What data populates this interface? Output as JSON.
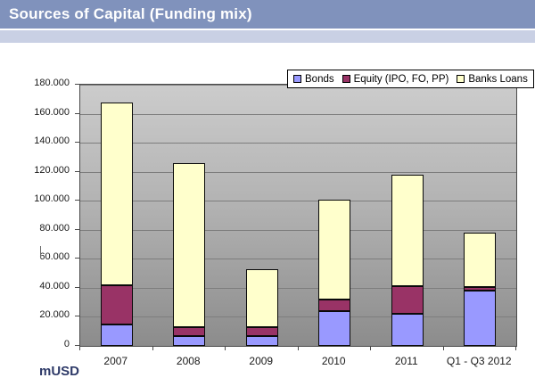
{
  "header": {
    "title": "Sources of Capital (Funding mix)"
  },
  "colors": {
    "header_bar": "#8092bc",
    "header_strip": "#c9d0e4",
    "title_text": "#ffffff",
    "plot_gradient_top": "#cccccc",
    "plot_gradient_bottom": "#8c8c8c",
    "gridline": "#7d7d7d",
    "bar_border": "#0a0a0a",
    "unit_label_text": "#2e3a68",
    "bonds": "#9999FF",
    "equity": "#993366",
    "banks_loans": "#FFFFCC"
  },
  "chart_data": {
    "type": "bar",
    "stacked": true,
    "unit_label": "mUSD",
    "categories": [
      "2007",
      "2008",
      "2009",
      "2010",
      "2011",
      "Q1 - Q3 2012"
    ],
    "series": [
      {
        "name": "Bonds",
        "color": "#9999FF",
        "values": [
          15000,
          7000,
          7000,
          24000,
          22000,
          38000
        ]
      },
      {
        "name": "Equity (IPO, FO, PP)",
        "color": "#993366",
        "values": [
          27000,
          6000,
          6000,
          8000,
          19000,
          2500
        ]
      },
      {
        "name": "Banks Loans",
        "color": "#FFFFCC",
        "values": [
          126000,
          113000,
          40000,
          69000,
          77000,
          37500
        ]
      }
    ],
    "totals": [
      168000,
      126000,
      53000,
      101000,
      118000,
      78000
    ],
    "ylim": [
      0,
      180000
    ],
    "ytick_step": 20000,
    "ytick_labels": [
      "0",
      "20.000",
      "40.000",
      "60.000",
      "80.000",
      "100.000",
      "120.000",
      "140.000",
      "160.000",
      "180.000"
    ],
    "grid": true,
    "legend_position": "top-right"
  }
}
